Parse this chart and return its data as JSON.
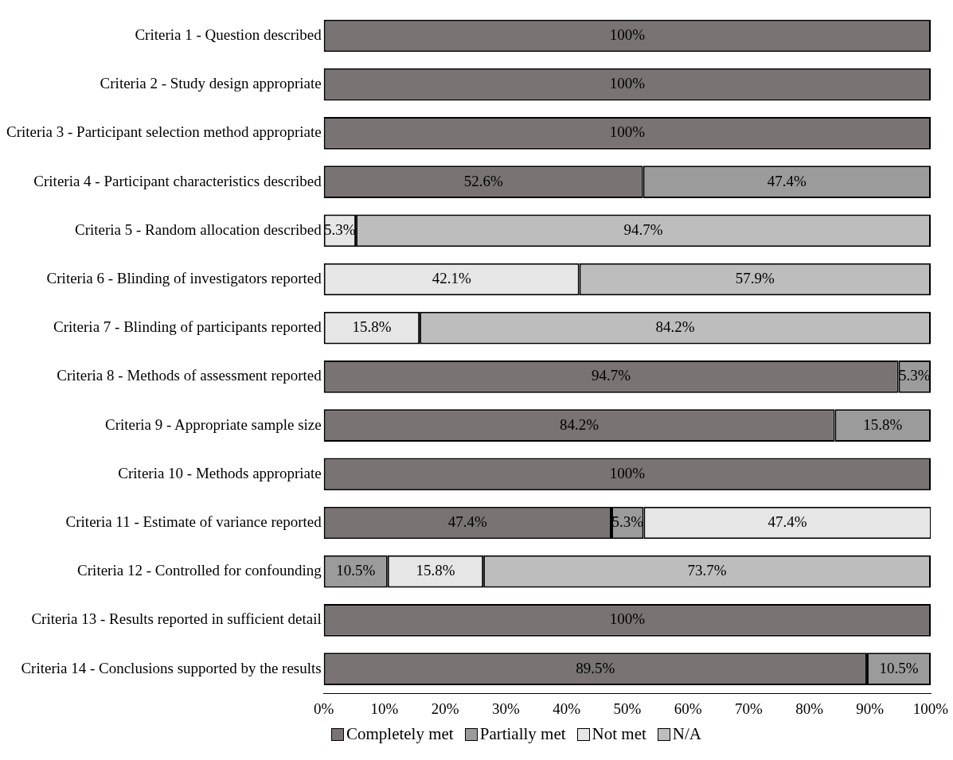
{
  "chart_data": {
    "type": "bar",
    "orientation": "horizontal",
    "stacked": true,
    "categories": [
      "Criteria 1 - Question described",
      "Criteria 2 - Study design appropriate",
      "Criteria 3 - Participant selection method appropriate",
      "Criteria 4 - Participant characteristics described",
      "Criteria 5 - Random allocation described",
      "Criteria 6 - Blinding of investigators reported",
      "Criteria 7 - Blinding of participants reported",
      "Criteria 8 - Methods of assessment reported",
      "Criteria 9 - Appropriate sample size",
      "Criteria 10 - Methods appropriate",
      "Criteria 11 - Estimate of variance reported",
      "Criteria 12 - Controlled for confounding",
      "Criteria 13 - Results reported in sufficient detail",
      "Criteria 14 - Conclusions supported by the results"
    ],
    "series": [
      {
        "name": "Completely met",
        "color": "#797373",
        "values": [
          100,
          100,
          100,
          52.6,
          null,
          null,
          null,
          94.7,
          84.2,
          100,
          47.4,
          null,
          100,
          89.5
        ],
        "value_labels": [
          "100%",
          "100%",
          "100%",
          "52.6%",
          null,
          null,
          null,
          "94.7%",
          "84.2%",
          "100%",
          "47.4%",
          null,
          "100%",
          "89.5%"
        ]
      },
      {
        "name": "Partially met",
        "color": "#9b9b9b",
        "values": [
          null,
          null,
          null,
          47.4,
          null,
          null,
          null,
          5.3,
          15.8,
          null,
          5.3,
          10.5,
          null,
          10.5
        ],
        "value_labels": [
          null,
          null,
          null,
          "47.4%",
          null,
          null,
          null,
          "5.3%",
          "15.8%",
          null,
          "5.3%",
          "10.5%",
          null,
          "10.5%"
        ]
      },
      {
        "name": "Not met",
        "color": "#e6e6e6",
        "values": [
          null,
          null,
          null,
          null,
          5.3,
          42.1,
          15.8,
          null,
          null,
          null,
          47.4,
          15.8,
          null,
          null
        ],
        "value_labels": [
          null,
          null,
          null,
          null,
          "5.3%",
          "42.1%",
          "15.8%",
          null,
          null,
          null,
          "47.4%",
          "15.8%",
          null,
          null
        ]
      },
      {
        "name": "N/A",
        "color": "#bdbdbd",
        "values": [
          null,
          null,
          null,
          null,
          94.7,
          57.9,
          84.2,
          null,
          null,
          null,
          null,
          73.7,
          null,
          null
        ],
        "value_labels": [
          null,
          null,
          null,
          null,
          "94.7%",
          "57.9%",
          "84.2%",
          null,
          null,
          null,
          null,
          "73.7%",
          null,
          null
        ]
      }
    ],
    "xlim": [
      0,
      100
    ],
    "xticks": [
      {
        "value": 0,
        "label": "0%"
      },
      {
        "value": 10,
        "label": "10%"
      },
      {
        "value": 20,
        "label": "20%"
      },
      {
        "value": 30,
        "label": "30%"
      },
      {
        "value": 40,
        "label": "40%"
      },
      {
        "value": 50,
        "label": "50%"
      },
      {
        "value": 60,
        "label": "60%"
      },
      {
        "value": 70,
        "label": "70%"
      },
      {
        "value": 80,
        "label": "80%"
      },
      {
        "value": 90,
        "label": "90%"
      },
      {
        "value": 100,
        "label": "100%"
      }
    ],
    "grid": false,
    "legend": "bottom"
  }
}
